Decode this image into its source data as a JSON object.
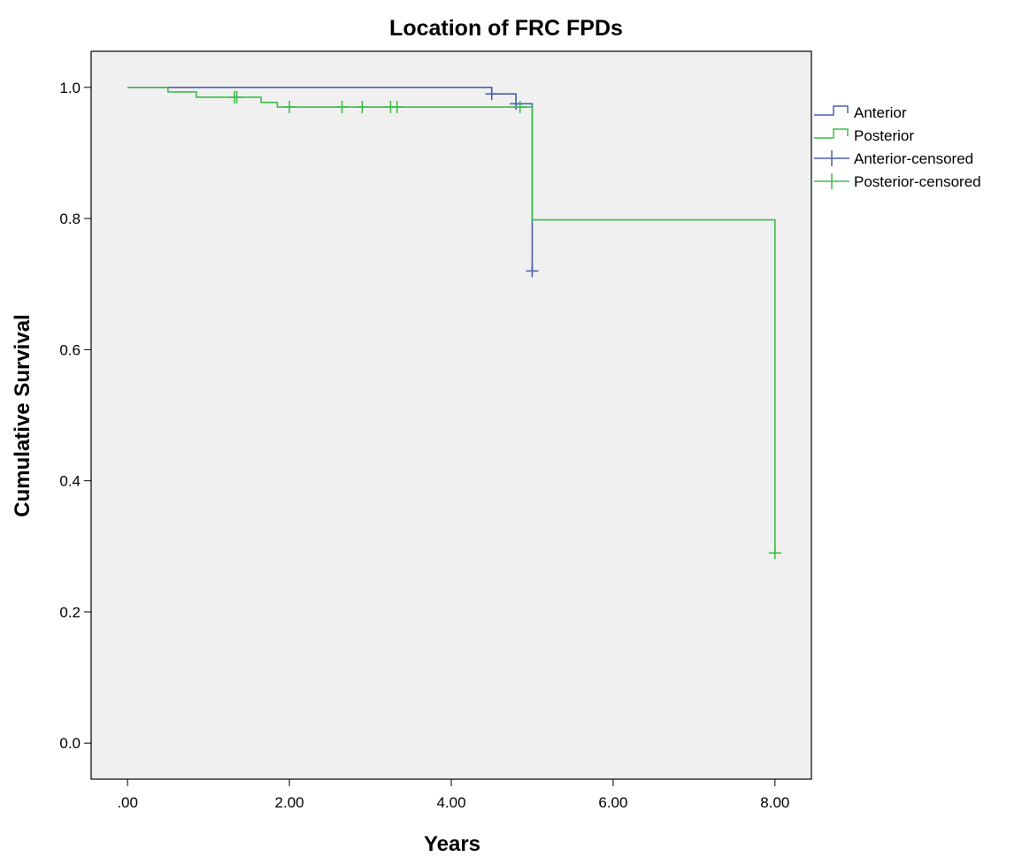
{
  "chart_data": {
    "type": "line",
    "subtype": "kaplan-meier-step",
    "title": "Location of FRC FPDs",
    "xlabel": "Years",
    "ylabel": "Cumulative Survival",
    "xlim": [
      -0.45,
      8.45
    ],
    "ylim": [
      -0.055,
      1.055
    ],
    "xticks": [
      0,
      2,
      4,
      6,
      8
    ],
    "xtick_labels": [
      ".00",
      "2.00",
      "4.00",
      "6.00",
      "8.00"
    ],
    "yticks": [
      0,
      0.2,
      0.4,
      0.6,
      0.8,
      1.0
    ],
    "ytick_labels": [
      "0.0",
      "0.2",
      "0.4",
      "0.6",
      "0.8",
      "1.0"
    ],
    "grid": false,
    "legend_position": "right",
    "series": [
      {
        "name": "Anterior",
        "color": "#4a5fb5",
        "steps": [
          [
            0,
            1.0
          ],
          [
            4.5,
            0.99
          ],
          [
            4.8,
            0.975
          ],
          [
            5.0,
            0.72
          ]
        ],
        "censored": [
          [
            4.5,
            0.99
          ],
          [
            4.8,
            0.975
          ],
          [
            5.0,
            0.72
          ]
        ]
      },
      {
        "name": "Posterior",
        "color": "#3dbd4a",
        "steps": [
          [
            0,
            1.0
          ],
          [
            0.5,
            0.993
          ],
          [
            0.85,
            0.985
          ],
          [
            1.65,
            0.977
          ],
          [
            1.85,
            0.97
          ],
          [
            5.0,
            0.798
          ],
          [
            8.0,
            0.29
          ]
        ],
        "end_x": 8.0,
        "censored": [
          [
            1.32,
            0.985
          ],
          [
            1.35,
            0.985
          ],
          [
            2.0,
            0.97
          ],
          [
            2.65,
            0.97
          ],
          [
            2.9,
            0.97
          ],
          [
            3.25,
            0.97
          ],
          [
            3.33,
            0.97
          ],
          [
            4.85,
            0.97
          ],
          [
            8.0,
            0.29
          ]
        ]
      }
    ],
    "legend": [
      "Anterior",
      "Posterior",
      "Anterior-censored",
      "Posterior-censored"
    ]
  }
}
